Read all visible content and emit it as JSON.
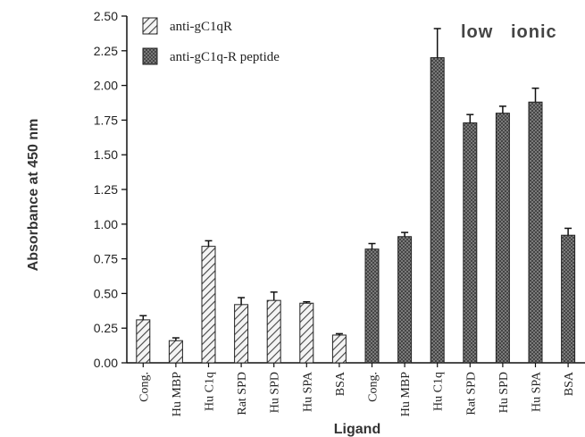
{
  "chart_data": {
    "type": "bar",
    "xlabel": "Ligand",
    "ylabel": "Absorbance at 450 nm",
    "ylim": [
      0,
      2.5
    ],
    "yticks": [
      "0.00",
      "0.25",
      "0.50",
      "0.75",
      "1.00",
      "1.25",
      "1.50",
      "1.75",
      "2.00",
      "2.25",
      "2.50"
    ],
    "annotation": "low   ionic",
    "legend_position": "top-left",
    "series": [
      {
        "name": "anti-gC1qR",
        "pattern": "diagonal-hatch",
        "color": "#555555",
        "categories": [
          "Cong.",
          "Hu MBP",
          "Hu C1q",
          "Rat SPD",
          "Hu SPD",
          "Hu SPA",
          "BSA"
        ],
        "values": [
          0.31,
          0.16,
          0.84,
          0.42,
          0.45,
          0.43,
          0.2
        ],
        "errors": [
          0.03,
          0.02,
          0.04,
          0.05,
          0.06,
          0.01,
          0.01
        ]
      },
      {
        "name": "anti-gC1q-R peptide",
        "pattern": "cross-hatch",
        "color": "#555555",
        "categories": [
          "Cong.",
          "Hu MBP",
          "Hu C1q",
          "Rat SPD",
          "Hu SPD",
          "Hu SPA",
          "BSA"
        ],
        "values": [
          0.82,
          0.91,
          2.2,
          1.73,
          1.8,
          1.88,
          0.92
        ],
        "errors": [
          0.04,
          0.03,
          0.21,
          0.06,
          0.05,
          0.1,
          0.05
        ]
      }
    ]
  }
}
